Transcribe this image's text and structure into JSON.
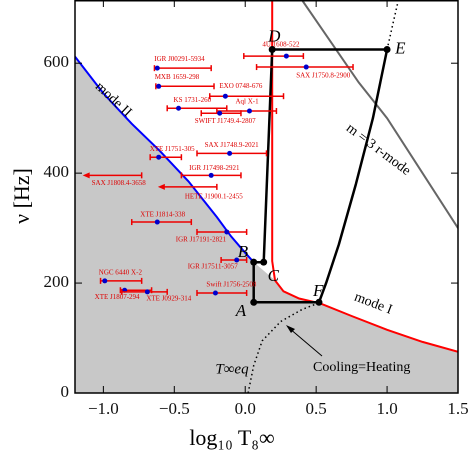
{
  "chart_data": {
    "type": "scatter",
    "x_label": "log₁₀ T₈∞",
    "y_label": "ν [Hz]",
    "xlim": [
      -1.2,
      1.5
    ],
    "ylim": [
      0,
      715
    ],
    "xticks": [
      {
        "value": -1,
        "label": "−1.0"
      },
      {
        "value": -0.5,
        "label": "−0.5"
      },
      {
        "value": 0,
        "label": "0.0"
      },
      0.5,
      {
        "value": 1,
        "label": "1.0"
      },
      1.5
    ],
    "yticks": [
      0,
      200,
      400,
      600
    ],
    "fill_color": "#c8c8c8",
    "curves": [
      {
        "name": "mode II",
        "color": "#0000ff",
        "style": "solid",
        "x": [
          -1.2,
          -1.0,
          -0.8,
          -0.6,
          -0.4,
          -0.2,
          -0.1,
          0.0,
          0.06
        ],
        "y": [
          612,
          545,
          490,
          440,
          385,
          320,
          285,
          255,
          238
        ]
      },
      {
        "name": "mode I",
        "color": "#ff0000",
        "style": "solid",
        "x": [
          0.19,
          0.19,
          0.21,
          0.27,
          0.38,
          0.53,
          0.75,
          1.0,
          1.25,
          1.5
        ],
        "y": [
          715,
          240,
          205,
          185,
          172,
          163,
          140,
          115,
          93,
          75
        ]
      },
      {
        "name": "m = 3 r-mode",
        "color": "#666666",
        "style": "solid",
        "x": [
          0.4,
          0.6,
          0.8,
          1.0,
          1.2,
          1.5
        ],
        "y": [
          715,
          640,
          565,
          500,
          420,
          300
        ]
      },
      {
        "name": "T∞eq",
        "color": "#000000",
        "style": "dotted",
        "x": [
          0.02,
          0.06,
          0.12,
          0.25,
          0.4,
          0.53,
          null,
          1.0,
          1.04,
          1.08
        ],
        "y": [
          0,
          50,
          95,
          130,
          152,
          165,
          null,
          625,
          670,
          715
        ]
      }
    ],
    "annotation": "Cooling=Heating",
    "cycle": {
      "color": "#000000",
      "x": [
        0.06,
        0.06,
        0.13,
        0.19,
        1.0,
        0.9,
        0.78,
        0.66,
        0.57,
        0.52,
        0.06
      ],
      "y": [
        165,
        238,
        238,
        625,
        625,
        500,
        380,
        270,
        200,
        165,
        165
      ]
    },
    "points": [
      {
        "label": "A",
        "x": 0.06,
        "y": 165
      },
      {
        "label": "B",
        "x": 0.06,
        "y": 238
      },
      {
        "label": "C",
        "x": 0.13,
        "y": 238
      },
      {
        "label": "D",
        "x": 0.19,
        "y": 625
      },
      {
        "label": "E",
        "x": 1.0,
        "y": 625
      },
      {
        "label": "F",
        "x": 0.52,
        "y": 165
      }
    ],
    "sources": [
      {
        "name": "4U 1608-522",
        "x": 0.29,
        "y": 613,
        "x_low": -0.01,
        "x_high": 0.41
      },
      {
        "name": "IGR J00291-5934",
        "x": -0.62,
        "y": 591,
        "x_low": -0.64,
        "x_high": -0.24
      },
      {
        "name": "SAX J1750.8-2900",
        "x": 0.43,
        "y": 593,
        "x_low": 0.08,
        "x_high": 0.76
      },
      {
        "name": "MXB 1659-298",
        "x": -0.61,
        "y": 558,
        "x_low": -0.63,
        "x_high": -0.22
      },
      {
        "name": "EXO 0748-676",
        "x": -0.14,
        "y": 540,
        "x_low": -0.25,
        "x_high": 0.27
      },
      {
        "name": "KS 1731-260",
        "x": -0.47,
        "y": 518,
        "x_low": -0.55,
        "x_high": -0.13
      },
      {
        "name": "Aql X-1",
        "x": 0.03,
        "y": 513,
        "x_low": -0.2,
        "x_high": 0.22
      },
      {
        "name": "SWIFT J1749.4-2807",
        "x": -0.18,
        "y": 509,
        "x_low": -0.31,
        "x_high": -0.03
      },
      {
        "name": "SAX J1748.9-2021",
        "x": -0.11,
        "y": 436,
        "x_low": -0.34,
        "x_high": 0.15
      },
      {
        "name": "XTE J1751-305",
        "x": -0.61,
        "y": 429,
        "x_low": -0.67,
        "x_high": -0.45
      },
      {
        "name": "IGR J17498-2921",
        "x": -0.24,
        "y": 396,
        "x_low": -0.45,
        "x_high": -0.03
      },
      {
        "name": "SAX J1808.4-3658",
        "y": 396,
        "x_high": -0.73,
        "upper_limit": true
      },
      {
        "name": "HETE J1900.1-2455",
        "y": 375,
        "x_high": -0.2,
        "upper_limit": true
      },
      {
        "name": "XTE J1814-338",
        "x": -0.62,
        "y": 311,
        "x_low": -0.8,
        "x_high": -0.38
      },
      {
        "name": "IGR J17191-2821",
        "x": -0.13,
        "y": 293,
        "x_low": -0.34,
        "x_high": 0.01
      },
      {
        "name": "IGR J17511-3057",
        "x": -0.06,
        "y": 242,
        "x_low": -0.17,
        "x_high": 0.01
      },
      {
        "name": "NGC 6440 X-2",
        "x": -0.99,
        "y": 204,
        "x_low": -1.02,
        "x_high": -0.73
      },
      {
        "name": "XTE J1807-294",
        "x": -0.85,
        "y": 187,
        "x_low": -0.88,
        "x_high": -0.66
      },
      {
        "name": "XTE J0929-314",
        "x": -0.69,
        "y": 184,
        "x_low": -0.87,
        "x_high": -0.55
      },
      {
        "name": "Swift J1756-2508",
        "x": -0.21,
        "y": 182,
        "x_low": -0.34,
        "x_high": 0.01
      }
    ],
    "source_color": "#0000cc",
    "bar_color": "#ee0000"
  }
}
